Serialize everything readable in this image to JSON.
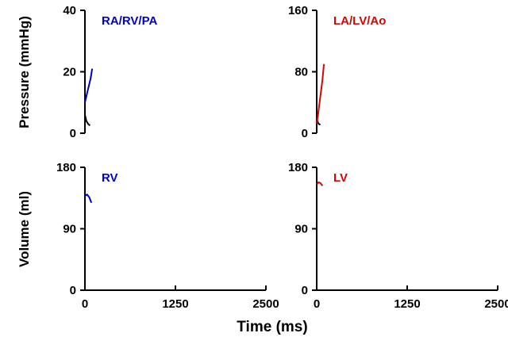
{
  "figure": {
    "ylabel_pressure": "Pressure (mmHg)",
    "ylabel_volume": "Volume (ml)",
    "xlabel": "Time (ms)"
  },
  "chart_data": [
    {
      "type": "line",
      "panel": "top-left",
      "annotation": "RA/RV/PA",
      "annotation_color": "#0000cc",
      "xlim": [
        0,
        2500
      ],
      "ylim": [
        0,
        40
      ],
      "yticks": [
        "0",
        "20",
        "40"
      ],
      "xticks": [],
      "series": [
        {
          "color": "#000000",
          "x": [
            0,
            20,
            45,
            70
          ],
          "y": [
            6,
            4,
            3,
            2.5
          ]
        },
        {
          "color": "#0000cc",
          "x": [
            0,
            20,
            40,
            60,
            80,
            100
          ],
          "y": [
            10,
            12,
            14,
            16,
            18,
            21
          ]
        }
      ]
    },
    {
      "type": "line",
      "panel": "top-right",
      "annotation": "LA/LV/Ao",
      "annotation_color": "#e00000",
      "xlim": [
        0,
        2500
      ],
      "ylim": [
        0,
        160
      ],
      "yticks": [
        "0",
        "80",
        "160"
      ],
      "xticks": [],
      "series": [
        {
          "color": "#000000",
          "x": [
            0,
            15,
            30,
            50
          ],
          "y": [
            20,
            14,
            12,
            11
          ]
        },
        {
          "color": "#e00000",
          "x": [
            0,
            20,
            40,
            60,
            80,
            100
          ],
          "y": [
            12,
            25,
            40,
            55,
            70,
            90
          ]
        }
      ]
    },
    {
      "type": "line",
      "panel": "bottom-left",
      "annotation": "RV",
      "annotation_color": "#0000cc",
      "xlim": [
        0,
        2500
      ],
      "ylim": [
        0,
        180
      ],
      "yticks": [
        "0",
        "90",
        "180"
      ],
      "xticks": [
        "0",
        "1250",
        "2500"
      ],
      "series": [
        {
          "color": "#0000cc",
          "x": [
            0,
            30,
            60,
            90
          ],
          "y": [
            138,
            140,
            136,
            128
          ]
        }
      ]
    },
    {
      "type": "line",
      "panel": "bottom-right",
      "annotation": "LV",
      "annotation_color": "#e00000",
      "xlim": [
        0,
        2500
      ],
      "ylim": [
        0,
        180
      ],
      "yticks": [
        "0",
        "90",
        "180"
      ],
      "xticks": [
        "0",
        "1250",
        "2500"
      ],
      "series": [
        {
          "color": "#e00000",
          "x": [
            0,
            25,
            50,
            80
          ],
          "y": [
            155,
            158,
            157,
            153
          ]
        }
      ]
    }
  ]
}
